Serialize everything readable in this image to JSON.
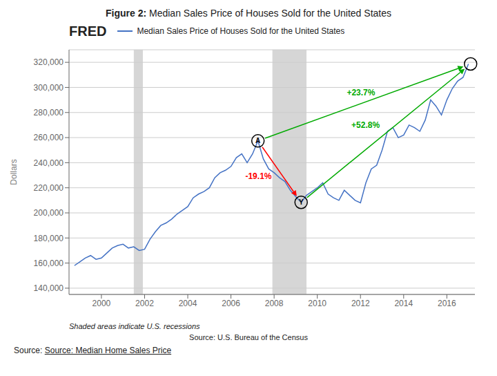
{
  "chart_data": {
    "type": "line",
    "title": "Figure 2: Median Sales Price of Houses Sold for the United States",
    "header": "FRED",
    "y_label": "Dollars",
    "notes": [
      "Shaded areas indicate U.S. recessions",
      "Source: U.S. Bureau of the Census"
    ],
    "source": [
      "Source: ",
      "Source: Median Home Sales Price"
    ],
    "x": [
      1998.75,
      1999.0,
      1999.25,
      1999.5,
      1999.75,
      2000.0,
      2000.25,
      2000.5,
      2000.75,
      2001.0,
      2001.25,
      2001.5,
      2001.75,
      2002.0,
      2002.25,
      2002.5,
      2002.75,
      2003.0,
      2003.25,
      2003.5,
      2003.75,
      2004.0,
      2004.25,
      2004.5,
      2004.75,
      2005.0,
      2005.25,
      2005.5,
      2005.75,
      2006.0,
      2006.25,
      2006.5,
      2006.75,
      2007.0,
      2007.25,
      2007.5,
      2007.75,
      2008.0,
      2008.25,
      2008.5,
      2008.75,
      2009.0,
      2009.25,
      2009.5,
      2009.75,
      2010.0,
      2010.25,
      2010.5,
      2010.75,
      2011.0,
      2011.25,
      2011.5,
      2011.75,
      2012.0,
      2012.25,
      2012.5,
      2012.75,
      2013.0,
      2013.25,
      2013.5,
      2013.75,
      2014.0,
      2014.25,
      2014.5,
      2014.75,
      2015.0,
      2015.25,
      2015.5,
      2015.75,
      2016.0,
      2016.25,
      2016.5,
      2016.75,
      2017.0
    ],
    "series": [
      {
        "name": "Median Sales Price of Houses Sold for the United States",
        "color": "#4472c4",
        "values": [
          158000,
          161000,
          164000,
          166000,
          163000,
          164000,
          168000,
          172000,
          174000,
          175000,
          172000,
          173000,
          170000,
          171000,
          179000,
          185000,
          190000,
          192000,
          195000,
          199000,
          202000,
          205000,
          212000,
          215000,
          217000,
          220000,
          228000,
          232000,
          234000,
          237000,
          244000,
          247000,
          240000,
          247000,
          257400,
          243000,
          235000,
          232000,
          228000,
          225000,
          218000,
          213000,
          208400,
          214000,
          217000,
          220000,
          224000,
          215000,
          212000,
          210000,
          218000,
          214000,
          210000,
          208000,
          224000,
          235000,
          238000,
          250000,
          265000,
          268000,
          260000,
          262000,
          270000,
          268000,
          265000,
          274000,
          290000,
          285000,
          278000,
          290000,
          299000,
          305000,
          308000,
          318700
        ]
      }
    ],
    "xlim": [
      1998.5,
      2017.3
    ],
    "ylim": [
      135000,
      330000
    ],
    "xticks": [
      2000,
      2002,
      2004,
      2006,
      2008,
      2010,
      2012,
      2014,
      2016
    ],
    "yticks": [
      {
        "value": 140000,
        "label": "140,000"
      },
      {
        "value": 160000,
        "label": "160,000"
      },
      {
        "value": 180000,
        "label": "180,000"
      },
      {
        "value": 200000,
        "label": "200,000"
      },
      {
        "value": 220000,
        "label": "220,000"
      },
      {
        "value": 240000,
        "label": "240,000"
      },
      {
        "value": 260000,
        "label": "260,000"
      },
      {
        "value": 280000,
        "label": "280,000"
      },
      {
        "value": 300000,
        "label": "300,000"
      },
      {
        "value": 320000,
        "label": "320,000"
      }
    ],
    "grid": true,
    "recessions": [
      {
        "start": 2001.5,
        "end": 2001.92,
        "color": "#cccccc"
      },
      {
        "start": 2007.92,
        "end": 2009.5,
        "color": "#cccccc"
      }
    ],
    "annotations": [
      {
        "type": "circle",
        "x": 2007.25,
        "y": 257400,
        "text": "A"
      },
      {
        "type": "circle",
        "x": 2009.25,
        "y": 208400,
        "text": "Y"
      },
      {
        "type": "circle",
        "x": 2017.1,
        "y": 318700
      },
      {
        "type": "arrow",
        "from": [
          2007.25,
          257400
        ],
        "to": [
          2009.25,
          208400
        ],
        "text": "-19.1%",
        "color": "red"
      },
      {
        "type": "arrow",
        "from": [
          2007.25,
          257400
        ],
        "to": [
          2017.1,
          318700
        ],
        "text": "+23.7%",
        "color": "#00aa00"
      },
      {
        "type": "arrow",
        "from": [
          2009.25,
          208400
        ],
        "to": [
          2017.1,
          318700
        ],
        "text": "+52.8%",
        "color": "#00aa00"
      }
    ]
  }
}
